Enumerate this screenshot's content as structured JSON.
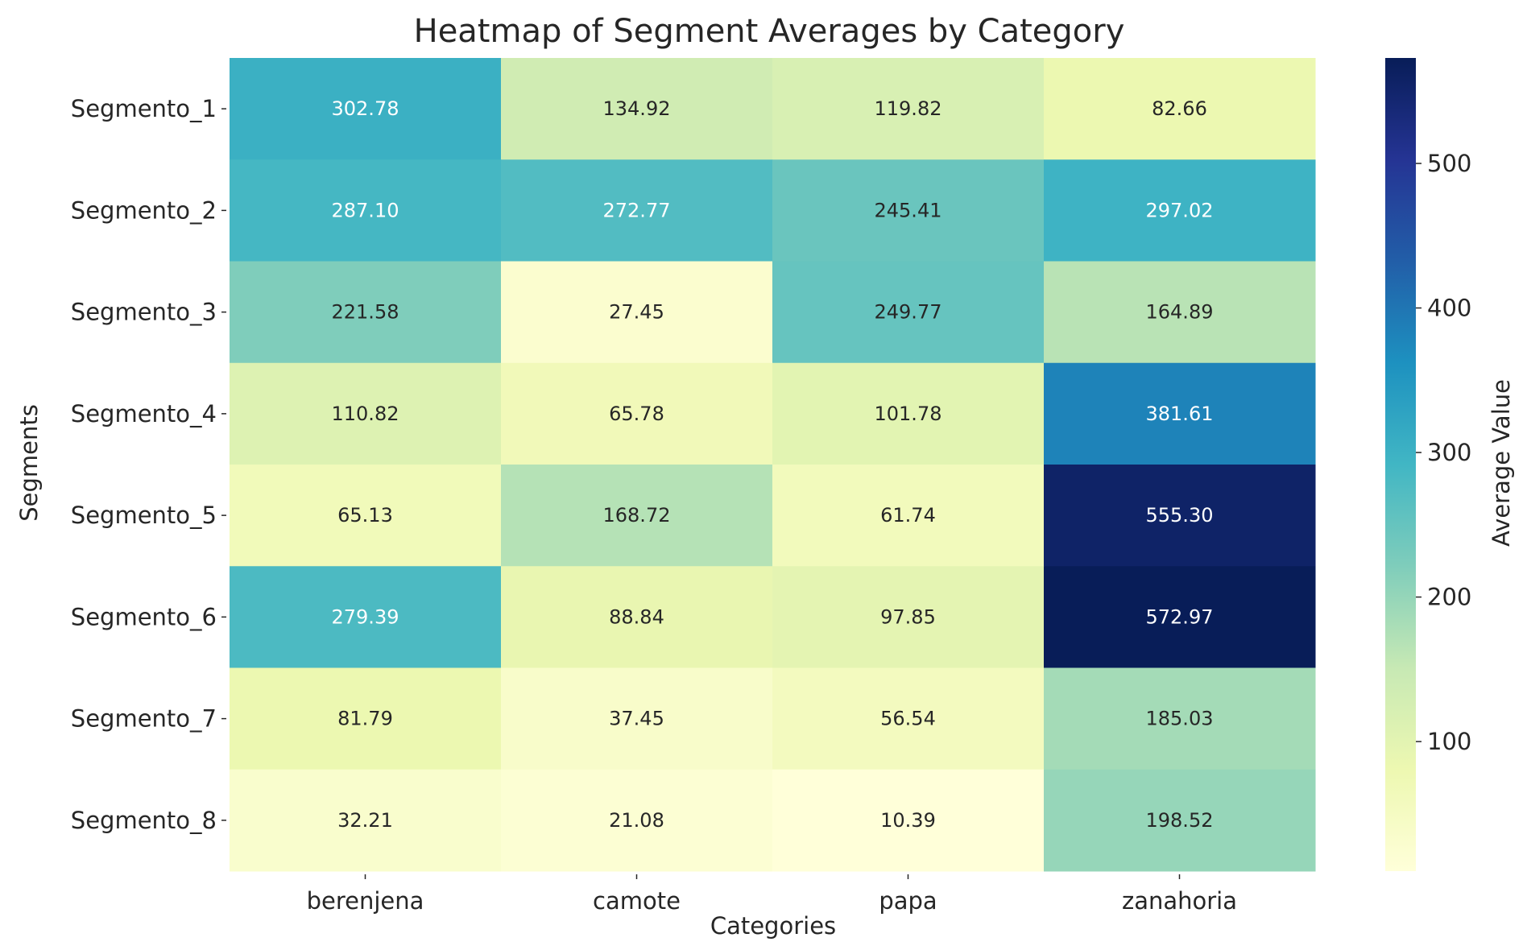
{
  "chart_data": {
    "type": "heatmap",
    "title": "Heatmap of Segment Averages by Category",
    "xlabel": "Categories",
    "ylabel": "Segments",
    "colorbar_label": "Average Value",
    "colormap": "YlGnBu",
    "value_range": [
      10.39,
      572.97
    ],
    "colorbar_ticks": [
      100,
      200,
      300,
      400,
      500
    ],
    "categories": [
      "berenjena",
      "camote",
      "papa",
      "zanahoria"
    ],
    "segments": [
      "Segmento_1",
      "Segmento_2",
      "Segmento_3",
      "Segmento_4",
      "Segmento_5",
      "Segmento_6",
      "Segmento_7",
      "Segmento_8"
    ],
    "values": [
      [
        302.78,
        134.92,
        119.82,
        82.66
      ],
      [
        287.1,
        272.77,
        245.41,
        297.02
      ],
      [
        221.58,
        27.45,
        249.77,
        164.89
      ],
      [
        110.82,
        65.78,
        101.78,
        381.61
      ],
      [
        65.13,
        168.72,
        61.74,
        555.3
      ],
      [
        279.39,
        88.84,
        97.85,
        572.97
      ],
      [
        81.79,
        37.45,
        56.54,
        185.03
      ],
      [
        32.21,
        21.08,
        10.39,
        198.52
      ]
    ],
    "grid": false
  }
}
